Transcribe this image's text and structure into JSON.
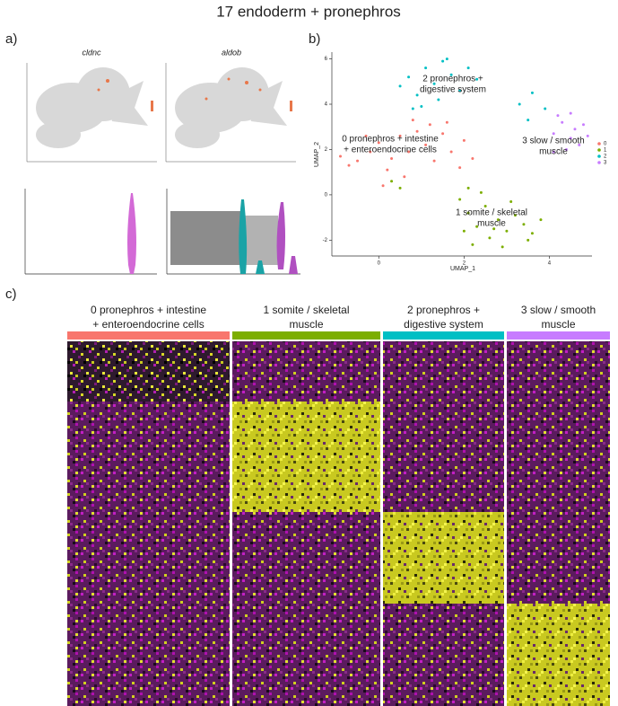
{
  "title": "17 endoderm + pronephros",
  "panels": {
    "a": "a)",
    "b": "b)",
    "c": "c)"
  },
  "panel_a": {
    "genes": [
      "cldnc",
      "aldob"
    ]
  },
  "chart_data": {
    "type": "scatter",
    "x_label": "UMAP_1",
    "y_label": "UMAP_2",
    "xlim": [
      -1.1,
      5
    ],
    "ylim": [
      -2.7,
      6.3
    ],
    "xticks": [
      0,
      2,
      4
    ],
    "yticks": [
      -2,
      0,
      2,
      4,
      6
    ],
    "legend": "right",
    "series": [
      {
        "name": "0",
        "color": "#F8766D",
        "x": [
          -0.9,
          -0.7,
          -0.5,
          -0.2,
          0,
          0.3,
          0.5,
          0.7,
          0.9,
          1.1,
          1.3,
          1.5,
          1.7,
          1.9,
          2,
          0.2,
          0.6,
          1.2,
          -0.3,
          0.8,
          1.6,
          2.2,
          0.1
        ],
        "y": [
          1.7,
          1.3,
          1.5,
          1.9,
          2.3,
          1.6,
          2.6,
          1.9,
          2.8,
          2.2,
          1.5,
          2.7,
          1.9,
          1.2,
          2.4,
          1.1,
          0.8,
          3.1,
          2.6,
          3.3,
          3.2,
          1.6,
          0.4
        ]
      },
      {
        "name": "1",
        "color": "#7CAE00",
        "x": [
          0.3,
          0.5,
          1.9,
          2.1,
          2.3,
          2.5,
          2.6,
          2.8,
          3,
          3.2,
          3.4,
          3.6,
          3.8,
          2.2,
          2.9,
          2.4,
          3.1,
          2,
          3.5,
          2.7,
          2.1
        ],
        "y": [
          0.6,
          0.3,
          -0.2,
          -0.8,
          -1.4,
          -0.5,
          -1.9,
          -1.1,
          -1.6,
          -0.9,
          -1.3,
          -1.7,
          -1.1,
          -2.2,
          -2.3,
          0.1,
          -0.3,
          -1.6,
          -2,
          -1.5,
          0.3
        ]
      },
      {
        "name": "2",
        "color": "#00BFC4",
        "x": [
          0.5,
          0.7,
          0.9,
          1.1,
          1.3,
          1.5,
          1.7,
          1.9,
          2.1,
          0.8,
          1.4,
          1.6,
          2.3,
          3.3,
          3.6,
          3.9,
          3.5,
          1
        ],
        "y": [
          4.8,
          5.2,
          4.4,
          5.6,
          4.9,
          5.9,
          5.3,
          4.6,
          5.6,
          3.8,
          4.2,
          6,
          5.1,
          4,
          4.5,
          3.8,
          3.3,
          3.9
        ]
      },
      {
        "name": "3",
        "color": "#C77CFF",
        "x": [
          4.1,
          4.3,
          4.5,
          4.6,
          4.8,
          4.7,
          4.4,
          4.9,
          4.2,
          4.5,
          4.1
        ],
        "y": [
          2.7,
          3.2,
          2.5,
          2.9,
          3.1,
          2.2,
          2,
          2.6,
          3.5,
          3.6,
          1.9
        ]
      }
    ],
    "annotations": [
      [
        "2 pronephros +",
        "digestive system"
      ],
      [
        "0 pronephros + intestine",
        "+ enteroendocrine cells"
      ],
      [
        "3 slow / smooth",
        "muscle"
      ],
      [
        "1 somite / skeletal",
        "muscle"
      ]
    ]
  },
  "heatmap": {
    "columns": [
      {
        "lines": [
          "0 pronephros + intestine",
          "+ enteroendocrine cells"
        ],
        "color": "#F8766D"
      },
      {
        "lines": [
          "1 somite / skeletal",
          "muscle"
        ],
        "color": "#7CAE00"
      },
      {
        "lines": [
          "2 pronephros +",
          "digestive system"
        ],
        "color": "#00BFC4"
      },
      {
        "lines": [
          "3 slow / smooth",
          "muscle"
        ],
        "color": "#C77CFF"
      }
    ]
  }
}
